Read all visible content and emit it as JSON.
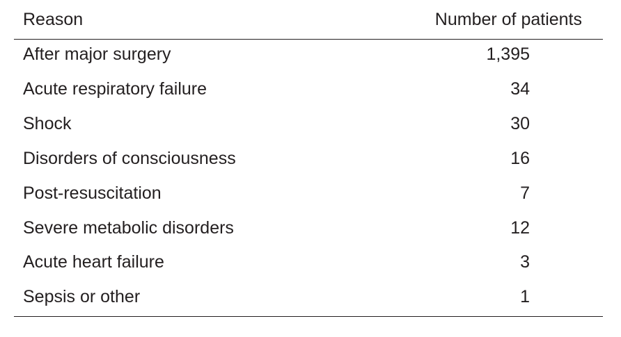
{
  "table": {
    "headers": {
      "reason": "Reason",
      "count": "Number of patients"
    },
    "rows": [
      {
        "reason": "After major surgery",
        "count": "1,395"
      },
      {
        "reason": "Acute respiratory failure",
        "count": "34"
      },
      {
        "reason": "Shock",
        "count": "30"
      },
      {
        "reason": "Disorders of consciousness",
        "count": "16"
      },
      {
        "reason": "Post-resuscitation",
        "count": "7"
      },
      {
        "reason": "Severe metabolic disorders",
        "count": "12"
      },
      {
        "reason": "Acute heart failure",
        "count": "3"
      },
      {
        "reason": "Sepsis or other",
        "count": "1"
      }
    ]
  }
}
